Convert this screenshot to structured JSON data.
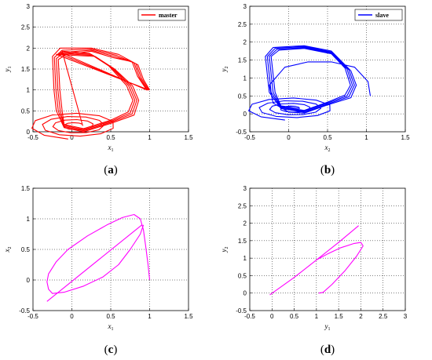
{
  "chart_data": [
    {
      "panel": "a",
      "panel_label_pre": "(",
      "panel_label_letter": "a",
      "panel_label_post": ")",
      "type": "line",
      "xlabel": "x",
      "xlabel_sub": "1",
      "ylabel": "y",
      "ylabel_sub": "1",
      "xlim": [
        -0.5,
        1.5
      ],
      "ylim": [
        0,
        3
      ],
      "xticks": [
        -0.5,
        0,
        0.5,
        1,
        1.5
      ],
      "yticks": [
        0,
        0.5,
        1,
        1.5,
        2,
        2.5,
        3
      ],
      "xtick_labels": [
        "-0.5",
        "0",
        "0.5",
        "1",
        "1.5"
      ],
      "ytick_labels": [
        "0",
        "0.5",
        "1",
        "1.5",
        "2",
        "2.5",
        "3"
      ],
      "grid": true,
      "legend": {
        "position": "top-right",
        "entries": [
          "master"
        ]
      },
      "series": [
        {
          "name": "master",
          "color": "#ff0000",
          "shape": "chaotic-attractor",
          "x": [
            1.0,
            0.9,
            0.85,
            0.6,
            0.25,
            -0.15,
            -0.25,
            -0.22,
            -0.1,
            0.2,
            0.55,
            0.8,
            0.85,
            0.7,
            0.3
          ],
          "y": [
            1.0,
            1.2,
            1.6,
            1.85,
            2.0,
            2.0,
            1.8,
            0.5,
            0.05,
            0.0,
            0.2,
            0.4,
            0.8,
            1.3,
            1.9
          ]
        }
      ]
    },
    {
      "panel": "b",
      "panel_label_pre": "(",
      "panel_label_letter": "b",
      "panel_label_post": ")",
      "type": "line",
      "xlabel": "x",
      "xlabel_sub": "2",
      "ylabel": "y",
      "ylabel_sub": "2",
      "xlim": [
        -0.5,
        1.5
      ],
      "ylim": [
        -0.5,
        3
      ],
      "xticks": [
        -0.5,
        0,
        0.5,
        1,
        1.5
      ],
      "yticks": [
        -0.5,
        0,
        0.5,
        1,
        1.5,
        2,
        2.5,
        3
      ],
      "xtick_labels": [
        "-0.5",
        "0",
        "0.5",
        "1",
        "1.5"
      ],
      "ytick_labels": [
        "-0.5",
        "0",
        "0.5",
        "1",
        "1.5",
        "2",
        "2.5",
        "3"
      ],
      "grid": true,
      "legend": {
        "position": "top-right",
        "entries": [
          "slave"
        ]
      },
      "series": [
        {
          "name": "slave",
          "color": "#0000ff",
          "shape": "chaotic-attractor",
          "x": [
            1.05,
            1.0,
            0.8,
            0.3,
            -0.2,
            -0.3,
            -0.25,
            -0.1,
            0.25,
            0.6,
            0.85,
            0.85,
            0.6
          ],
          "y": [
            0.5,
            1.05,
            1.4,
            1.45,
            1.1,
            1.8,
            0.4,
            0.0,
            0.15,
            0.4,
            0.7,
            1.2,
            1.85
          ]
        }
      ]
    },
    {
      "panel": "c",
      "panel_label_pre": "(",
      "panel_label_letter": "c",
      "panel_label_post": ")",
      "type": "line",
      "xlabel": "x",
      "xlabel_sub": "1",
      "ylabel": "x",
      "ylabel_sub": "2",
      "xlim": [
        -0.5,
        1.5
      ],
      "ylim": [
        -0.5,
        1.5
      ],
      "xticks": [
        -0.5,
        0,
        0.5,
        1,
        1.5
      ],
      "yticks": [
        -0.5,
        0,
        0.5,
        1,
        1.5
      ],
      "xtick_labels": [
        "-0.5",
        "0",
        "0.5",
        "1",
        "1.5"
      ],
      "ytick_labels": [
        "-0.5",
        "0",
        "0.5",
        "1",
        "1.5"
      ],
      "grid": true,
      "series": [
        {
          "color": "#ff00ff",
          "x": [
            1.0,
            0.98,
            0.95,
            0.92,
            0.88,
            0.8,
            0.65,
            0.45,
            0.2,
            -0.05,
            -0.2,
            -0.3,
            -0.32,
            -0.3,
            -0.25,
            -0.1,
            0.15,
            0.4,
            0.6,
            0.75,
            0.88,
            0.92
          ],
          "y": [
            0.0,
            0.25,
            0.55,
            0.82,
            1.0,
            1.07,
            1.02,
            0.9,
            0.72,
            0.5,
            0.3,
            0.1,
            -0.03,
            -0.15,
            -0.22,
            -0.2,
            -0.1,
            0.05,
            0.25,
            0.5,
            0.75,
            0.9
          ]
        },
        {
          "color": "#ff00ff",
          "x": [
            -0.32,
            0.9
          ],
          "y": [
            -0.35,
            0.9
          ]
        }
      ]
    },
    {
      "panel": "d",
      "panel_label_pre": "(",
      "panel_label_letter": "d",
      "panel_label_post": ")",
      "type": "line",
      "xlabel": "y",
      "xlabel_sub": "1",
      "ylabel": "y",
      "ylabel_sub": "2",
      "xlim": [
        -0.5,
        3
      ],
      "ylim": [
        -0.5,
        3
      ],
      "xticks": [
        -0.5,
        0,
        0.5,
        1,
        1.5,
        2,
        2.5,
        3
      ],
      "yticks": [
        -0.5,
        0,
        0.5,
        1,
        1.5,
        2,
        2.5,
        3
      ],
      "xtick_labels": [
        "-0.5",
        "0",
        "0.5",
        "1",
        "1.5",
        "2",
        "2.5",
        "3"
      ],
      "ytick_labels": [
        "-0.5",
        "0",
        "0.5",
        "1",
        "1.5",
        "2",
        "2.5",
        "3"
      ],
      "grid": true,
      "series": [
        {
          "color": "#ff00ff",
          "x": [
            -0.05,
            0.5,
            1.0,
            1.5,
            1.95
          ],
          "y": [
            -0.05,
            0.45,
            0.95,
            1.45,
            1.93
          ]
        },
        {
          "color": "#ff00ff",
          "x": [
            1.05,
            1.15,
            1.35,
            1.65,
            1.9,
            2.05,
            2.0,
            1.85,
            1.55,
            1.25,
            1.0
          ],
          "y": [
            0.0,
            0.02,
            0.25,
            0.65,
            1.05,
            1.35,
            1.45,
            1.42,
            1.3,
            1.12,
            0.95
          ]
        }
      ]
    }
  ]
}
